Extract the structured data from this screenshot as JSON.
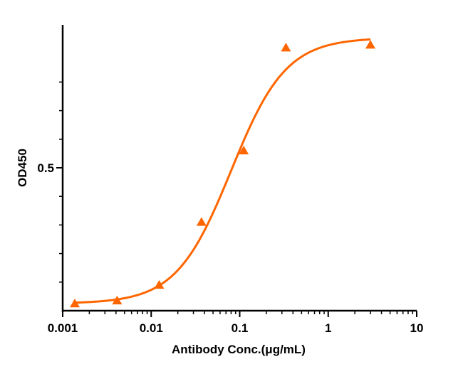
{
  "chart_data": {
    "type": "scatter",
    "title": "",
    "xlabel": "Antibody Conc.(μg/mL)",
    "ylabel": "OD450",
    "x_scale": "log",
    "xlim": [
      0.001,
      10
    ],
    "ylim": [
      0.0,
      1.0
    ],
    "x_ticks": [
      0.001,
      0.01,
      0.1,
      1,
      10
    ],
    "x_tick_labels": [
      "0.001",
      "0.01",
      "0.1",
      "1",
      "10"
    ],
    "y_ticks": [
      0.5
    ],
    "y_tick_labels": [
      "0.5"
    ],
    "grid": false,
    "colors": {
      "series": "#ff6600",
      "axis": "#000000"
    },
    "series": [
      {
        "marker": "triangle",
        "x": [
          0.00137,
          0.00412,
          0.0123,
          0.037,
          0.111,
          0.333,
          3.0
        ],
        "y": [
          0.025,
          0.035,
          0.09,
          0.31,
          0.56,
          0.92,
          0.93
        ]
      }
    ],
    "fit": {
      "type": "4PL",
      "bottom": 0.025,
      "top": 0.955,
      "ec50": 0.08,
      "hill": 1.4
    }
  }
}
